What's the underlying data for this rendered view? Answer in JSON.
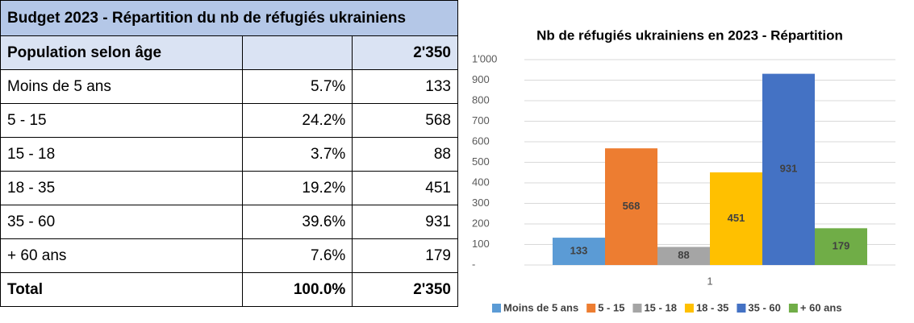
{
  "table": {
    "title": "Budget 2023 - Répartition du nb de réfugiés ukrainiens",
    "header": {
      "label": "Population selon âge",
      "total": "2'350"
    },
    "rows": [
      [
        "Moins de 5 ans",
        "5.7%",
        "133"
      ],
      [
        " 5 - 15",
        "24.2%",
        "568"
      ],
      [
        "15 - 18",
        "3.7%",
        "88"
      ],
      [
        "18 - 35",
        "19.2%",
        "451"
      ],
      [
        "35 - 60",
        "39.6%",
        "931"
      ],
      [
        "+ 60 ans",
        "7.6%",
        "179"
      ]
    ],
    "footer": [
      "Total",
      "100.0%",
      "2'350"
    ]
  },
  "chart_data": {
    "type": "bar",
    "title": "Nb de réfugiés ukrainiens en 2023 - Répartition",
    "categories": [
      "1"
    ],
    "series": [
      {
        "name": "Moins de 5 ans",
        "color": "#5b9bd5",
        "values": [
          133
        ]
      },
      {
        "name": "5 - 15",
        "color": "#ed7d31",
        "values": [
          568
        ]
      },
      {
        "name": "15 - 18",
        "color": "#a5a5a5",
        "values": [
          88
        ]
      },
      {
        "name": "18 - 35",
        "color": "#ffc000",
        "values": [
          451
        ]
      },
      {
        "name": "35 - 60",
        "color": "#4472c4",
        "values": [
          931
        ]
      },
      {
        "name": "+ 60 ans",
        "color": "#70ad47",
        "values": [
          179
        ]
      }
    ],
    "ylim": [
      0,
      1000
    ],
    "yticks": [
      {
        "value": 0,
        "label": "-"
      },
      100,
      200,
      300,
      400,
      500,
      600,
      700,
      800,
      900,
      {
        "value": 1000,
        "label": "1'000"
      }
    ],
    "grid": true,
    "legend": "bottom"
  }
}
